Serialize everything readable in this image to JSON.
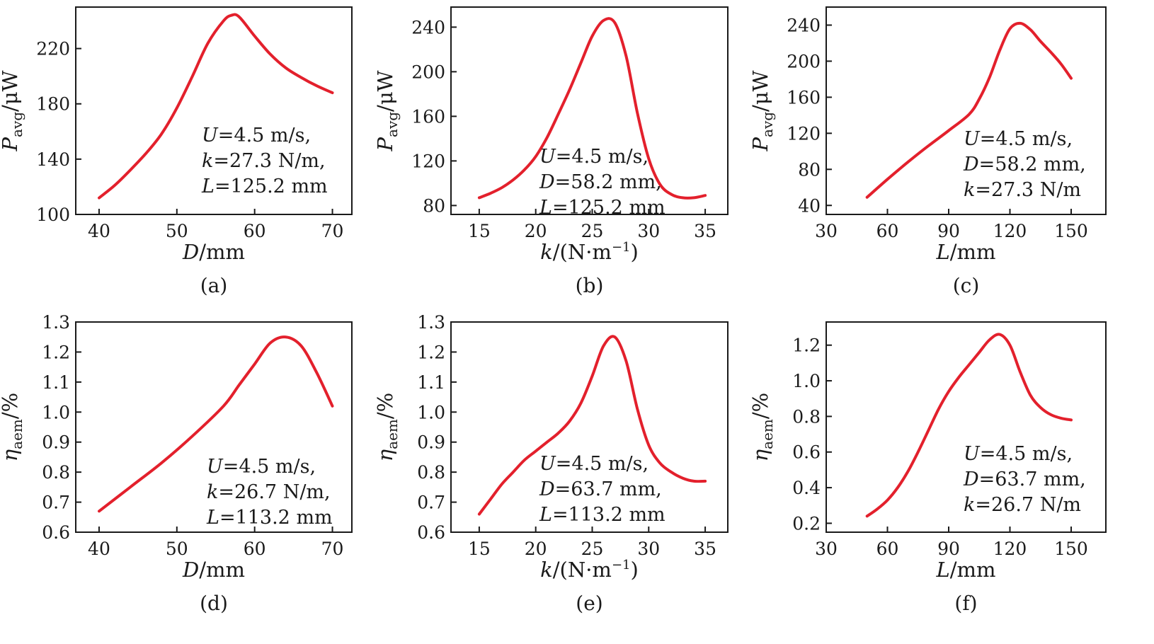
{
  "colors": {
    "series": "#e3202c",
    "axis": "#1a1a1a"
  },
  "chart_data": [
    {
      "type": "line",
      "panel_label": "(a)",
      "xlabel_var": "D",
      "xlabel_unit": "/mm",
      "ylabel_var": "P",
      "ylabel_sub": "avg",
      "ylabel_unit": "/μW",
      "xlim": [
        37,
        72.5
      ],
      "ylim": [
        100,
        250
      ],
      "xticks": [
        40,
        50,
        60,
        70
      ],
      "yticks": [
        100,
        140,
        180,
        220
      ],
      "annotations": [
        {
          "var": "U",
          "text": "=4.5 m/s,"
        },
        {
          "var": "k",
          "text": "=27.3 N/m,"
        },
        {
          "var": "L",
          "text": "=125.2 mm"
        }
      ],
      "series": [
        {
          "x": [
            40,
            42,
            44,
            46,
            48,
            50,
            52,
            54,
            56,
            57,
            58,
            60,
            62,
            64,
            66,
            68,
            70
          ],
          "y": [
            112,
            121,
            132,
            144,
            158,
            177,
            200,
            224,
            240,
            244,
            243,
            229,
            216,
            206,
            199,
            193,
            188
          ]
        }
      ]
    },
    {
      "type": "line",
      "panel_label": "(b)",
      "xlabel_var": "k",
      "xlabel_unit": "/(N·m",
      "xlabel_sup": "−1",
      "xlabel_close": ")",
      "ylabel_var": "P",
      "ylabel_sub": "avg",
      "ylabel_unit": "/μW",
      "xlim": [
        12.5,
        37
      ],
      "ylim": [
        72,
        258
      ],
      "xticks": [
        15,
        20,
        25,
        30,
        35
      ],
      "yticks": [
        80,
        120,
        160,
        200,
        240
      ],
      "annotations": [
        {
          "var": "U",
          "text": "=4.5 m/s,"
        },
        {
          "var": "D",
          "text": "=58.2 mm,"
        },
        {
          "var": "L",
          "text": "=125.2 mm"
        }
      ],
      "series": [
        {
          "x": [
            15,
            16,
            17,
            18,
            19,
            20,
            21,
            22,
            23,
            24,
            25,
            26,
            27,
            28,
            29,
            30,
            31,
            32,
            33,
            34,
            35
          ],
          "y": [
            87,
            91,
            96,
            103,
            112,
            124,
            141,
            162,
            184,
            208,
            232,
            246,
            244,
            214,
            163,
            122,
            99,
            90,
            87,
            87,
            89
          ]
        }
      ]
    },
    {
      "type": "line",
      "panel_label": "(c)",
      "xlabel_var": "L",
      "xlabel_unit": "/mm",
      "ylabel_var": "P",
      "ylabel_sub": "avg",
      "ylabel_unit": "/μW",
      "xlim": [
        30,
        167
      ],
      "ylim": [
        30,
        260
      ],
      "xticks": [
        30,
        60,
        90,
        120,
        150
      ],
      "yticks": [
        40,
        80,
        120,
        160,
        200,
        240
      ],
      "annotations": [
        {
          "var": "U",
          "text": "=4.5 m/s,"
        },
        {
          "var": "D",
          "text": "=58.2 mm,"
        },
        {
          "var": "k",
          "text": "=27.3 N/m"
        }
      ],
      "series": [
        {
          "x": [
            50,
            60,
            70,
            80,
            90,
            100,
            105,
            110,
            115,
            120,
            125,
            130,
            135,
            140,
            145,
            150
          ],
          "y": [
            49,
            69,
            88,
            106,
            123,
            141,
            158,
            182,
            212,
            236,
            242,
            235,
            222,
            210,
            197,
            181
          ]
        }
      ]
    },
    {
      "type": "line",
      "panel_label": "(d)",
      "xlabel_var": "D",
      "xlabel_unit": "/mm",
      "ylabel_var": "η",
      "ylabel_sub": "aem",
      "ylabel_unit": "/%",
      "xlim": [
        37,
        72.5
      ],
      "ylim": [
        0.6,
        1.3
      ],
      "xticks": [
        40,
        50,
        60,
        70
      ],
      "yticks": [
        0.6,
        0.7,
        0.8,
        0.9,
        1.0,
        1.1,
        1.2,
        1.3
      ],
      "ytick_labels": [
        "0.6",
        "0.7",
        "0.8",
        "0.9",
        "1.0",
        "1.1",
        "1.2",
        "1.3"
      ],
      "annotations": [
        {
          "var": "U",
          "text": "=4.5 m/s,"
        },
        {
          "var": "k",
          "text": "=26.7 N/m,"
        },
        {
          "var": "L",
          "text": "=113.2 mm"
        }
      ],
      "series": [
        {
          "x": [
            40,
            44,
            48,
            52,
            56,
            58,
            60,
            62,
            64,
            66,
            68,
            70
          ],
          "y": [
            0.67,
            0.75,
            0.83,
            0.92,
            1.02,
            1.09,
            1.16,
            1.23,
            1.25,
            1.22,
            1.13,
            1.02
          ]
        }
      ]
    },
    {
      "type": "line",
      "panel_label": "(e)",
      "xlabel_var": "k",
      "xlabel_unit": "/(N·m",
      "xlabel_sup": "−1",
      "xlabel_close": ")",
      "ylabel_var": "η",
      "ylabel_sub": "aem",
      "ylabel_unit": "/%",
      "xlim": [
        12.5,
        37
      ],
      "ylim": [
        0.6,
        1.3
      ],
      "xticks": [
        15,
        20,
        25,
        30,
        35
      ],
      "yticks": [
        0.6,
        0.7,
        0.8,
        0.9,
        1.0,
        1.1,
        1.2,
        1.3
      ],
      "ytick_labels": [
        "0.6",
        "0.7",
        "0.8",
        "0.9",
        "1.0",
        "1.1",
        "1.2",
        "1.3"
      ],
      "annotations": [
        {
          "var": "U",
          "text": "=4.5 m/s,"
        },
        {
          "var": "D",
          "text": "=63.7 mm,"
        },
        {
          "var": "L",
          "text": "=113.2 mm"
        }
      ],
      "series": [
        {
          "x": [
            15,
            16,
            17,
            18,
            19,
            20,
            21,
            22,
            23,
            24,
            25,
            26,
            27,
            28,
            29,
            30,
            31,
            32,
            33,
            34,
            35
          ],
          "y": [
            0.66,
            0.71,
            0.76,
            0.8,
            0.84,
            0.87,
            0.9,
            0.93,
            0.97,
            1.03,
            1.12,
            1.22,
            1.25,
            1.17,
            1.01,
            0.89,
            0.83,
            0.8,
            0.78,
            0.77,
            0.77
          ]
        }
      ]
    },
    {
      "type": "line",
      "panel_label": "(f)",
      "xlabel_var": "L",
      "xlabel_unit": "/mm",
      "ylabel_var": "η",
      "ylabel_sub": "aem",
      "ylabel_unit": "/%",
      "xlim": [
        30,
        167
      ],
      "ylim": [
        0.15,
        1.33
      ],
      "xticks": [
        30,
        60,
        90,
        120,
        150
      ],
      "yticks": [
        0.2,
        0.4,
        0.6,
        0.8,
        1.0,
        1.2
      ],
      "ytick_labels": [
        "0.2",
        "0.4",
        "0.6",
        "0.8",
        "1.0",
        "1.2"
      ],
      "annotations": [
        {
          "var": "U",
          "text": "=4.5 m/s,"
        },
        {
          "var": "D",
          "text": "=63.7 mm,"
        },
        {
          "var": "k",
          "text": "=26.7 N/m"
        }
      ],
      "series": [
        {
          "x": [
            50,
            55,
            60,
            65,
            70,
            75,
            80,
            85,
            90,
            95,
            100,
            105,
            110,
            115,
            120,
            125,
            130,
            135,
            140,
            145,
            150
          ],
          "y": [
            0.24,
            0.28,
            0.33,
            0.4,
            0.49,
            0.6,
            0.72,
            0.84,
            0.94,
            1.02,
            1.09,
            1.16,
            1.23,
            1.26,
            1.2,
            1.05,
            0.92,
            0.85,
            0.81,
            0.79,
            0.78
          ]
        }
      ]
    }
  ]
}
